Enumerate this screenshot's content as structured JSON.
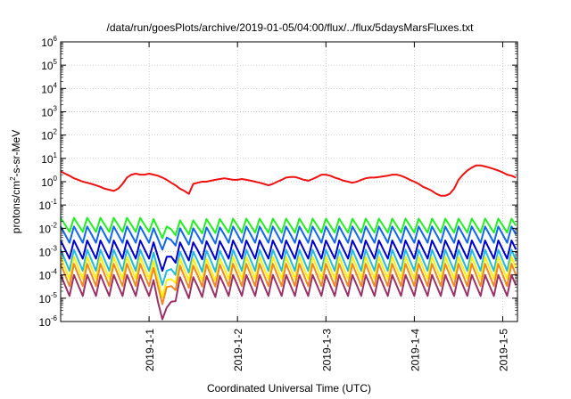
{
  "chart_data": {
    "type": "line",
    "title": "/data/run/goesPlots/archive/2019-01-05/04:00/flux/../flux/5daysMarsFluxes.txt",
    "xlabel": "Coordinated Universal Time (UTC)",
    "ylabel_parts": [
      "protons/cm",
      "2",
      "-s-sr-MeV"
    ],
    "xlim": [
      "2018-12-31 00:00",
      "2019-01-05 04:00"
    ],
    "ylim": [
      1e-06,
      1000000.0
    ],
    "yscale": "log",
    "grid": true,
    "legend": "none",
    "x_ticks": [
      "2019-1-1",
      "2019-1-2",
      "2019-1-3",
      "2019-1-4",
      "2019-1-5"
    ],
    "y_ticks": [
      {
        "base": "10",
        "exp": "-6"
      },
      {
        "base": "10",
        "exp": "-5"
      },
      {
        "base": "10",
        "exp": "-4"
      },
      {
        "base": "10",
        "exp": "-3"
      },
      {
        "base": "10",
        "exp": "-2"
      },
      {
        "base": "10",
        "exp": "-1"
      },
      {
        "base": "10",
        "exp": "0"
      },
      {
        "base": "10",
        "exp": "1"
      },
      {
        "base": "10",
        "exp": "2"
      },
      {
        "base": "10",
        "exp": "3"
      },
      {
        "base": "10",
        "exp": "4"
      },
      {
        "base": "10",
        "exp": "5"
      },
      {
        "base": "10",
        "exp": "6"
      }
    ],
    "x_days": [
      0,
      0.05,
      0.1,
      0.15,
      0.2,
      0.25,
      0.3,
      0.35,
      0.4,
      0.45,
      0.5,
      0.55,
      0.6,
      0.65,
      0.7,
      0.75,
      0.8,
      0.85,
      0.9,
      0.95,
      1.0,
      1.05,
      1.1,
      1.15,
      1.2,
      1.25,
      1.3,
      1.35,
      1.4,
      1.45,
      1.5,
      1.55,
      1.6,
      1.65,
      1.7,
      1.75,
      1.8,
      1.85,
      1.9,
      1.95,
      2.0,
      2.05,
      2.1,
      2.15,
      2.2,
      2.25,
      2.3,
      2.35,
      2.4,
      2.45,
      2.5,
      2.55,
      2.6,
      2.65,
      2.7,
      2.75,
      2.8,
      2.85,
      2.9,
      2.95,
      3.0,
      3.05,
      3.1,
      3.15,
      3.2,
      3.25,
      3.3,
      3.35,
      3.4,
      3.45,
      3.5,
      3.55,
      3.6,
      3.65,
      3.7,
      3.75,
      3.8,
      3.85,
      3.9,
      3.95,
      4.0,
      4.05,
      4.1,
      4.15,
      4.2,
      4.25,
      4.3,
      4.35,
      4.4,
      4.45,
      4.5,
      4.55,
      4.6,
      4.65,
      4.7,
      4.75,
      4.8,
      4.85,
      4.9,
      4.95,
      5.0,
      5.05,
      5.1,
      5.15
    ],
    "series": [
      {
        "color": "#ee1111",
        "envelope": [
          2.8,
          2.2,
          1.8,
          1.4,
          1.2,
          1.0,
          0.9,
          0.8,
          0.7,
          0.6,
          0.5,
          0.45,
          0.4,
          0.5,
          0.8,
          1.5,
          2.0,
          2.2,
          2.0,
          2.0,
          2.2,
          2.0,
          1.8,
          1.5,
          1.2,
          0.9,
          0.7,
          0.5,
          0.4,
          0.3,
          0.8,
          0.9,
          1.0,
          1.0,
          1.1,
          1.2,
          1.3,
          1.4,
          1.3,
          1.2,
          1.2,
          1.3,
          1.2,
          1.1,
          1.0,
          0.9,
          0.8,
          0.7,
          0.8,
          1.0,
          1.2,
          1.5,
          1.6,
          1.6,
          1.4,
          1.2,
          1.1,
          1.3,
          1.6,
          2.0,
          2.0,
          1.8,
          1.5,
          1.3,
          1.1,
          1.0,
          0.9,
          1.0,
          1.2,
          1.4,
          1.5,
          1.5,
          1.6,
          1.7,
          1.8,
          2.0,
          2.0,
          1.8,
          1.5,
          1.2,
          1.0,
          0.8,
          0.6,
          0.5,
          0.4,
          0.3,
          0.25,
          0.25,
          0.3,
          0.5,
          1.2,
          2.0,
          3.0,
          4.0,
          5.0,
          5.0,
          4.5,
          4.0,
          3.5,
          3.0,
          2.5,
          2.0,
          1.8,
          1.5
        ]
      },
      {
        "color": "#22ee22",
        "envelope": [
          0.028,
          0.028,
          0.028,
          0.028,
          0.028,
          0.028,
          0.028,
          0.028,
          0.028,
          0.028,
          0.028,
          0.028,
          0.028,
          0.028,
          0.028,
          0.028,
          0.028,
          0.028,
          0.028,
          0.028,
          0.028,
          0.025,
          0.02,
          0.015,
          0.012,
          0.018,
          0.02,
          0.022,
          0.022,
          0.022,
          0.022,
          0.023,
          0.024,
          0.025,
          0.025,
          0.025,
          0.025,
          0.026,
          0.026,
          0.026,
          0.026,
          0.026,
          0.026,
          0.026,
          0.026,
          0.026,
          0.026,
          0.026,
          0.026,
          0.026,
          0.026,
          0.026,
          0.026,
          0.026,
          0.026,
          0.026,
          0.026,
          0.026,
          0.026,
          0.026,
          0.026,
          0.026,
          0.026,
          0.026,
          0.026,
          0.026,
          0.026,
          0.026,
          0.026,
          0.026,
          0.026,
          0.026,
          0.026,
          0.026,
          0.026,
          0.026,
          0.026,
          0.026,
          0.026,
          0.026,
          0.026,
          0.026,
          0.026,
          0.026,
          0.026,
          0.026,
          0.026,
          0.026,
          0.026,
          0.026,
          0.026,
          0.026,
          0.026,
          0.026,
          0.026,
          0.026,
          0.026,
          0.026,
          0.026,
          0.026,
          0.026,
          0.026,
          0.026,
          0.026
        ],
        "drop": 4
      },
      {
        "color": "#1166ee",
        "envelope": [
          0.012,
          0.012,
          0.012,
          0.012,
          0.012,
          0.012,
          0.012,
          0.012,
          0.012,
          0.012,
          0.012,
          0.012,
          0.012,
          0.012,
          0.012,
          0.012,
          0.012,
          0.012,
          0.012,
          0.012,
          0.012,
          0.01,
          0.008,
          0.006,
          0.004,
          0.007,
          0.009,
          0.01,
          0.01,
          0.01,
          0.01,
          0.011,
          0.011,
          0.011,
          0.011,
          0.011,
          0.011,
          0.012,
          0.012,
          0.012,
          0.012,
          0.012,
          0.012,
          0.012,
          0.012,
          0.012,
          0.012,
          0.012,
          0.012,
          0.012,
          0.012,
          0.012,
          0.012,
          0.012,
          0.012,
          0.012,
          0.012,
          0.012,
          0.012,
          0.012,
          0.012,
          0.012,
          0.012,
          0.012,
          0.012,
          0.012,
          0.012,
          0.012,
          0.012,
          0.012,
          0.012,
          0.012,
          0.012,
          0.012,
          0.012,
          0.012,
          0.012,
          0.012,
          0.012,
          0.012,
          0.012,
          0.012,
          0.012,
          0.012,
          0.012,
          0.012,
          0.012,
          0.012,
          0.012,
          0.012,
          0.012,
          0.012,
          0.012,
          0.012,
          0.012,
          0.012,
          0.012,
          0.012,
          0.012,
          0.012,
          0.012,
          0.012,
          0.012,
          0.012
        ],
        "drop": 5
      },
      {
        "color": "#0000cc",
        "envelope": [
          0.003,
          0.003,
          0.003,
          0.003,
          0.003,
          0.003,
          0.003,
          0.003,
          0.003,
          0.003,
          0.003,
          0.003,
          0.003,
          0.003,
          0.003,
          0.003,
          0.003,
          0.003,
          0.003,
          0.003,
          0.003,
          0.0025,
          0.0015,
          0.0009,
          0.0006,
          0.0015,
          0.002,
          0.0025,
          0.0025,
          0.0025,
          0.0025,
          0.0028,
          0.0028,
          0.0028,
          0.0028,
          0.0028,
          0.0028,
          0.003,
          0.003,
          0.003,
          0.003,
          0.003,
          0.003,
          0.003,
          0.003,
          0.003,
          0.003,
          0.003,
          0.003,
          0.003,
          0.003,
          0.003,
          0.003,
          0.003,
          0.003,
          0.003,
          0.003,
          0.003,
          0.003,
          0.003,
          0.003,
          0.003,
          0.003,
          0.003,
          0.003,
          0.003,
          0.003,
          0.003,
          0.003,
          0.003,
          0.003,
          0.003,
          0.003,
          0.003,
          0.003,
          0.003,
          0.003,
          0.003,
          0.003,
          0.003,
          0.003,
          0.003,
          0.003,
          0.003,
          0.003,
          0.003,
          0.003,
          0.003,
          0.003,
          0.003,
          0.003,
          0.003,
          0.003,
          0.003,
          0.003,
          0.003,
          0.003,
          0.003,
          0.003,
          0.003,
          0.003,
          0.003,
          0.003,
          0.003
        ],
        "drop": 6
      },
      {
        "color": "#22bbdd",
        "envelope": [
          0.0012,
          0.0012,
          0.0012,
          0.0012,
          0.0012,
          0.0012,
          0.0012,
          0.0012,
          0.0012,
          0.0012,
          0.0012,
          0.0012,
          0.0012,
          0.0012,
          0.0012,
          0.0012,
          0.0012,
          0.0012,
          0.0012,
          0.0012,
          0.0012,
          0.0009,
          0.0005,
          0.0003,
          0.00015,
          0.0005,
          0.0008,
          0.001,
          0.001,
          0.001,
          0.001,
          0.0011,
          0.0011,
          0.0011,
          0.0011,
          0.0011,
          0.0011,
          0.0012,
          0.0012,
          0.0012,
          0.0012,
          0.0012,
          0.0012,
          0.0012,
          0.0012,
          0.0012,
          0.0012,
          0.0012,
          0.0012,
          0.0012,
          0.0012,
          0.0012,
          0.0012,
          0.0012,
          0.0012,
          0.0012,
          0.0012,
          0.0012,
          0.0012,
          0.0012,
          0.0012,
          0.0012,
          0.0012,
          0.0012,
          0.0012,
          0.0012,
          0.0012,
          0.0012,
          0.0012,
          0.0012,
          0.0012,
          0.0012,
          0.0012,
          0.0012,
          0.0012,
          0.0012,
          0.0012,
          0.0012,
          0.0012,
          0.0012,
          0.0012,
          0.0012,
          0.0012,
          0.0012,
          0.0012,
          0.0012,
          0.0012,
          0.0012,
          0.0012,
          0.0012,
          0.0012,
          0.0012,
          0.0012,
          0.0012,
          0.0012,
          0.0012,
          0.0012,
          0.0012,
          0.0012,
          0.0012,
          0.0012,
          0.0012,
          0.0012,
          0.0012
        ],
        "drop": 8
      },
      {
        "color": "#ffee11",
        "envelope": [
          0.0006,
          0.0006,
          0.0006,
          0.0006,
          0.0006,
          0.0006,
          0.0006,
          0.0006,
          0.0006,
          0.0006,
          0.0006,
          0.0006,
          0.0006,
          0.0006,
          0.0006,
          0.0006,
          0.0006,
          0.0006,
          0.0006,
          0.0006,
          0.0006,
          0.0004,
          0.0002,
          0.0001,
          6e-05,
          0.0002,
          0.0004,
          0.0005,
          0.0005,
          0.0005,
          0.0005,
          0.0005,
          0.0005,
          0.0005,
          0.0005,
          0.0005,
          0.0005,
          0.0006,
          0.0006,
          0.0006,
          0.0006,
          0.0006,
          0.0006,
          0.0006,
          0.0006,
          0.0006,
          0.0006,
          0.0006,
          0.0006,
          0.0006,
          0.0006,
          0.0006,
          0.0006,
          0.0006,
          0.0006,
          0.0006,
          0.0006,
          0.0006,
          0.0006,
          0.0006,
          0.0006,
          0.0006,
          0.0006,
          0.0006,
          0.0006,
          0.0006,
          0.0006,
          0.0006,
          0.0006,
          0.0006,
          0.0006,
          0.0006,
          0.0006,
          0.0006,
          0.0006,
          0.0006,
          0.0006,
          0.0006,
          0.0006,
          0.0006,
          0.0006,
          0.0006,
          0.0006,
          0.0006,
          0.0006,
          0.0006,
          0.0006,
          0.0006,
          0.0006,
          0.0006,
          0.0006,
          0.0006,
          0.0006,
          0.0006,
          0.0006,
          0.0006,
          0.0006,
          0.0006,
          0.0006,
          0.0006,
          0.0006,
          0.0006,
          0.0006,
          0.0006
        ],
        "drop": 9
      },
      {
        "color": "#ee8822",
        "envelope": [
          0.0003,
          0.0003,
          0.0003,
          0.0003,
          0.0003,
          0.0003,
          0.0003,
          0.0003,
          0.0003,
          0.0003,
          0.0003,
          0.0003,
          0.0003,
          0.0003,
          0.0003,
          0.0003,
          0.0003,
          0.0003,
          0.0003,
          0.0003,
          0.0003,
          0.0002,
          0.0001,
          5e-05,
          3e-05,
          0.0001,
          0.0002,
          0.00025,
          0.00025,
          0.00025,
          0.00025,
          0.00028,
          0.00028,
          0.00028,
          0.00028,
          0.00028,
          0.00028,
          0.0003,
          0.0003,
          0.0003,
          0.0003,
          0.0003,
          0.0003,
          0.0003,
          0.0003,
          0.0003,
          0.0003,
          0.0003,
          0.0003,
          0.0003,
          0.0003,
          0.0003,
          0.0003,
          0.0003,
          0.0003,
          0.0003,
          0.0003,
          0.0003,
          0.0003,
          0.0003,
          0.0003,
          0.0003,
          0.0003,
          0.0003,
          0.0003,
          0.0003,
          0.0003,
          0.0003,
          0.0003,
          0.0003,
          0.0003,
          0.0003,
          0.0003,
          0.0003,
          0.0003,
          0.0003,
          0.0003,
          0.0003,
          0.0003,
          0.0003,
          0.0003,
          0.0003,
          0.0003,
          0.0003,
          0.0003,
          0.0003,
          0.0003,
          0.0003,
          0.0003,
          0.0003,
          0.0003,
          0.0003,
          0.0003,
          0.0003,
          0.0003,
          0.0003,
          0.0003,
          0.0003,
          0.0003,
          0.0003,
          0.0003,
          0.0003,
          0.0003,
          0.0003
        ],
        "drop": 9
      },
      {
        "color": "#993366",
        "envelope": [
          0.0001,
          0.0001,
          0.0001,
          0.0001,
          0.0001,
          0.0001,
          0.0001,
          0.0001,
          0.0001,
          0.0001,
          0.0001,
          0.0001,
          0.0001,
          0.0001,
          0.0001,
          0.0001,
          0.0001,
          0.0001,
          0.0001,
          0.0001,
          0.0001,
          6e-05,
          2e-05,
          1e-05,
          4e-06,
          2e-05,
          6e-05,
          8e-05,
          8e-05,
          8e-05,
          8e-05,
          9e-05,
          9e-05,
          9e-05,
          9e-05,
          9e-05,
          9e-05,
          0.0001,
          0.0001,
          0.0001,
          0.0001,
          0.0001,
          0.0001,
          0.0001,
          0.0001,
          0.0001,
          0.0001,
          0.0001,
          0.0001,
          0.0001,
          0.0001,
          0.0001,
          0.0001,
          0.0001,
          0.0001,
          0.0001,
          0.0001,
          0.0001,
          0.0001,
          0.0001,
          0.0001,
          0.0001,
          0.0001,
          0.0001,
          0.0001,
          0.0001,
          0.0001,
          0.0001,
          0.0001,
          0.0001,
          0.0001,
          0.0001,
          0.0001,
          0.0001,
          0.0001,
          0.0001,
          0.0001,
          0.0001,
          0.0001,
          0.0001,
          0.0001,
          0.0001,
          0.0001,
          0.0001,
          0.0001,
          0.0001,
          0.0001,
          0.0001,
          0.0001,
          0.0001,
          0.0001,
          0.0001,
          0.0001,
          0.0001,
          0.0001,
          0.0001,
          0.0001,
          0.0001,
          0.0001,
          0.0001,
          0.0001,
          0.0001,
          0.0001,
          0.0001
        ],
        "drop": 8
      }
    ]
  }
}
